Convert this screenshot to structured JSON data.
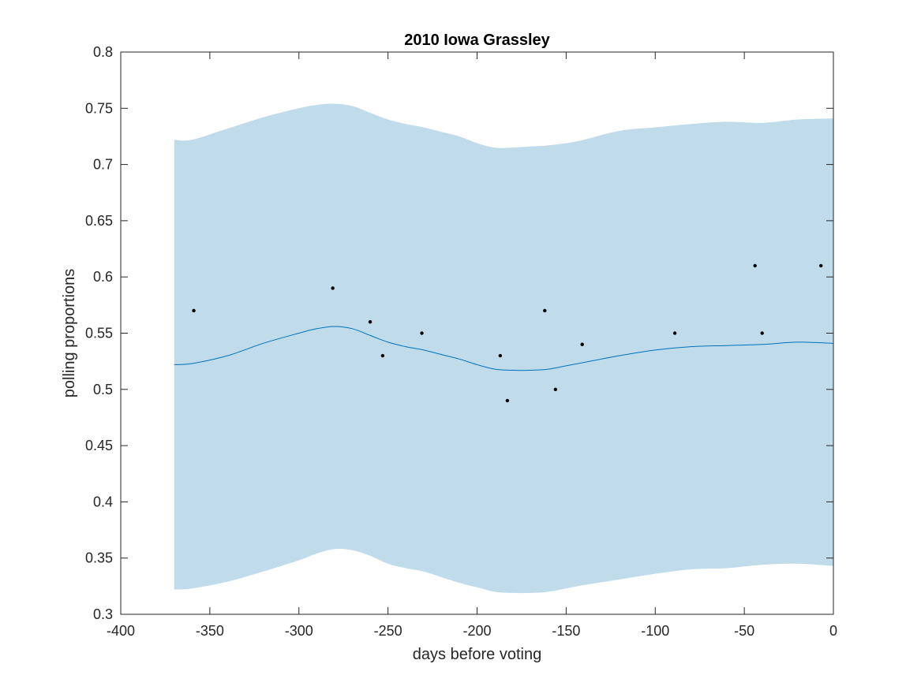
{
  "chart_data": {
    "type": "line",
    "title": "2010 Iowa Grassley",
    "xlabel": "days before voting",
    "ylabel": "polling proportions",
    "xlim": [
      -400,
      0
    ],
    "ylim": [
      0.3,
      0.8
    ],
    "xticks": [
      -400,
      -350,
      -300,
      -250,
      -200,
      -150,
      -100,
      -50,
      0
    ],
    "xtick_labels": [
      "-400",
      "-350",
      "-300",
      "-250",
      "-200",
      "-150",
      "-100",
      "-50",
      "0"
    ],
    "yticks": [
      0.3,
      0.35,
      0.4,
      0.45,
      0.5,
      0.55,
      0.6,
      0.65,
      0.7,
      0.75,
      0.8
    ],
    "ytick_labels": [
      "0.3",
      "0.35",
      "0.4",
      "0.45",
      "0.5",
      "0.55",
      "0.6",
      "0.65",
      "0.7",
      "0.75",
      "0.8"
    ],
    "grid": false,
    "series": [
      {
        "kind": "line",
        "color": "#0072bd",
        "x": [
          -370,
          -360,
          -340,
          -320,
          -300,
          -290,
          -280,
          -270,
          -260,
          -250,
          -240,
          -230,
          -220,
          -210,
          -200,
          -190,
          -180,
          -170,
          -160,
          -150,
          -140,
          -120,
          -100,
          -80,
          -60,
          -40,
          -20,
          0
        ],
        "y": [
          0.522,
          0.523,
          0.53,
          0.541,
          0.55,
          0.554,
          0.556,
          0.554,
          0.548,
          0.542,
          0.538,
          0.535,
          0.531,
          0.527,
          0.522,
          0.518,
          0.517,
          0.517,
          0.518,
          0.521,
          0.524,
          0.53,
          0.535,
          0.538,
          0.539,
          0.54,
          0.542,
          0.541
        ]
      },
      {
        "kind": "band",
        "color": "#c0dcea",
        "x": [
          -370,
          -360,
          -340,
          -320,
          -300,
          -290,
          -280,
          -270,
          -260,
          -250,
          -240,
          -230,
          -220,
          -210,
          -200,
          -190,
          -180,
          -170,
          -160,
          -150,
          -140,
          -120,
          -100,
          -80,
          -60,
          -40,
          -20,
          0
        ],
        "upper": [
          0.722,
          0.722,
          0.732,
          0.742,
          0.75,
          0.753,
          0.754,
          0.752,
          0.746,
          0.74,
          0.736,
          0.733,
          0.729,
          0.725,
          0.719,
          0.715,
          0.715,
          0.716,
          0.717,
          0.719,
          0.722,
          0.73,
          0.733,
          0.736,
          0.738,
          0.737,
          0.74,
          0.741
        ],
        "lower": [
          0.322,
          0.323,
          0.329,
          0.338,
          0.348,
          0.354,
          0.358,
          0.357,
          0.352,
          0.345,
          0.341,
          0.338,
          0.333,
          0.328,
          0.324,
          0.32,
          0.319,
          0.319,
          0.32,
          0.323,
          0.326,
          0.331,
          0.336,
          0.34,
          0.341,
          0.344,
          0.345,
          0.343
        ]
      },
      {
        "kind": "scatter",
        "color": "#000000",
        "x": [
          -359,
          -281,
          -260,
          -253,
          -231,
          -187,
          -183,
          -162,
          -156,
          -141,
          -89,
          -44,
          -40,
          -7
        ],
        "y": [
          0.57,
          0.59,
          0.56,
          0.53,
          0.55,
          0.53,
          0.49,
          0.57,
          0.5,
          0.54,
          0.55,
          0.61,
          0.55,
          0.61
        ]
      }
    ]
  }
}
